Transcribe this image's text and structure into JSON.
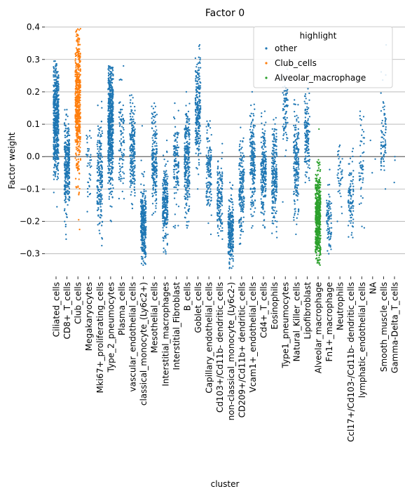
{
  "chart_data": {
    "type": "scatter",
    "style": "strip",
    "title": "Factor 0",
    "xlabel": "cluster",
    "ylabel": "Factor weight",
    "ylim": [
      -0.37,
      0.41
    ],
    "yticks": [
      -0.3,
      -0.2,
      -0.1,
      0.0,
      0.1,
      0.2,
      0.3,
      0.4
    ],
    "ytick_labels": [
      "−0.3",
      "−0.2",
      "−0.1",
      "0.0",
      "0.1",
      "0.2",
      "0.3",
      "0.4"
    ],
    "grid": "horizontal",
    "zero_line": true,
    "categories": [
      "Ciliated_cells",
      "CD8+_T_cells",
      "Club_cells",
      "Megakaryocytes",
      "Mki67+_proliferating_cells",
      "Type_2_pneumocytes",
      "Plasma_cells",
      "vascular_endothelial_cells",
      "classical_monocyte_(Ly6c2+)",
      "Mesothelial_cells",
      "Interstitial_macrophages",
      "Interstitial_Fibroblast",
      "B_cells",
      "Goblet_cells",
      "Capillary_endothelial_cells",
      "Cd103+/Cd11b- dendritic_cells",
      "non-classical_monocyte_(Ly6c2-)",
      "CD209+/Cd11b+ dendritic_cells",
      "Vcam1+_endothelial_cells",
      "Cd4+_T_cells",
      "Eosinophils",
      "Type1_pneumocytes",
      "Natural_Killer_cells",
      "Lipofibroblast",
      "Alveolar_macrophage",
      "Fn1+_macrophage",
      "Neutrophils",
      "Ccl17+/Cd103-/Cd11b- dendritic_cells",
      "lymphatic_endothelial_cells",
      "NA",
      "Smooth_muscle_cells",
      "Gamma-Delta_T_cells"
    ],
    "series": [
      {
        "name": "other",
        "color": "#1f77b4"
      },
      {
        "name": "Club_cells",
        "color": "#ff7f0e"
      },
      {
        "name": "Alveolar_macrophage",
        "color": "#2ca02c"
      }
    ],
    "legend": {
      "title": "highlight",
      "placement": "top-right"
    },
    "distributions": [
      {
        "category": "Ciliated_cells",
        "series": "other",
        "min": -0.155,
        "max": 0.295,
        "center": 0.12,
        "spread": 0.09,
        "n": 520
      },
      {
        "category": "CD8+_T_cells",
        "series": "other",
        "min": -0.255,
        "max": 0.145,
        "center": -0.03,
        "spread": 0.07,
        "n": 300
      },
      {
        "category": "Club_cells",
        "series": "Club_cells",
        "min": -0.225,
        "max": 0.395,
        "center": 0.17,
        "spread": 0.11,
        "n": 520
      },
      {
        "category": "Megakaryocytes",
        "series": "other",
        "min": -0.17,
        "max": 0.08,
        "center": -0.03,
        "spread": 0.06,
        "n": 40
      },
      {
        "category": "Mki67+_proliferating_cells",
        "series": "other",
        "min": -0.275,
        "max": 0.17,
        "center": -0.06,
        "spread": 0.08,
        "n": 200
      },
      {
        "category": "Type_2_pneumocytes",
        "series": "other",
        "min": -0.2,
        "max": 0.28,
        "center": 0.1,
        "spread": 0.1,
        "n": 620
      },
      {
        "category": "Plasma_cells",
        "series": "other",
        "min": -0.13,
        "max": 0.28,
        "center": 0.04,
        "spread": 0.08,
        "n": 90
      },
      {
        "category": "vascular_endothelial_cells",
        "series": "other",
        "min": -0.16,
        "max": 0.19,
        "center": 0.02,
        "spread": 0.07,
        "n": 200
      },
      {
        "category": "classical_monocyte_(Ly6c2+)",
        "series": "other",
        "min": -0.335,
        "max": 0.095,
        "center": -0.21,
        "spread": 0.06,
        "n": 300
      },
      {
        "category": "Mesothelial_cells",
        "series": "other",
        "min": -0.18,
        "max": 0.165,
        "center": -0.01,
        "spread": 0.07,
        "n": 200
      },
      {
        "category": "Interstitial_macrophages",
        "series": "other",
        "min": -0.3,
        "max": 0.05,
        "center": -0.15,
        "spread": 0.06,
        "n": 240
      },
      {
        "category": "Interstitial_Fibroblast",
        "series": "other",
        "min": -0.22,
        "max": 0.165,
        "center": -0.02,
        "spread": 0.07,
        "n": 120
      },
      {
        "category": "B_cells",
        "series": "other",
        "min": -0.22,
        "max": 0.2,
        "center": -0.02,
        "spread": 0.08,
        "n": 260
      },
      {
        "category": "Goblet_cells",
        "series": "other",
        "min": -0.1,
        "max": 0.345,
        "center": 0.15,
        "spread": 0.08,
        "n": 240
      },
      {
        "category": "Capillary_endothelial_cells",
        "series": "other",
        "min": -0.24,
        "max": 0.11,
        "center": -0.03,
        "spread": 0.07,
        "n": 140
      },
      {
        "category": "Cd103+/Cd11b- dendritic_cells",
        "series": "other",
        "min": -0.255,
        "max": 0.04,
        "center": -0.13,
        "spread": 0.06,
        "n": 150
      },
      {
        "category": "non-classical_monocyte_(Ly6c2-)",
        "series": "other",
        "min": -0.345,
        "max": -0.08,
        "center": -0.24,
        "spread": 0.05,
        "n": 260
      },
      {
        "category": "CD209+/Cd11b+ dendritic_cells",
        "series": "other",
        "min": -0.27,
        "max": 0.09,
        "center": -0.1,
        "spread": 0.07,
        "n": 180
      },
      {
        "category": "Vcam1+_endothelial_cells",
        "series": "other",
        "min": -0.22,
        "max": 0.2,
        "center": -0.01,
        "spread": 0.08,
        "n": 200
      },
      {
        "category": "Cd4+_T_cells",
        "series": "other",
        "min": -0.22,
        "max": 0.14,
        "center": -0.05,
        "spread": 0.07,
        "n": 220
      },
      {
        "category": "Eosinophils",
        "series": "other",
        "min": -0.25,
        "max": 0.12,
        "center": -0.06,
        "spread": 0.07,
        "n": 230
      },
      {
        "category": "Type1_pneumocytes",
        "series": "other",
        "min": -0.14,
        "max": 0.27,
        "center": 0.14,
        "spread": 0.06,
        "n": 80
      },
      {
        "category": "Natural_Killer_cells",
        "series": "other",
        "min": -0.24,
        "max": 0.175,
        "center": -0.03,
        "spread": 0.08,
        "n": 180
      },
      {
        "category": "Lipofibroblast",
        "series": "other",
        "min": -0.08,
        "max": 0.25,
        "center": 0.07,
        "spread": 0.07,
        "n": 140
      },
      {
        "category": "Alveolar_macrophage",
        "series": "Alveolar_macrophage",
        "min": -0.335,
        "max": 0.085,
        "center": -0.19,
        "spread": 0.07,
        "n": 520
      },
      {
        "category": "Fn1+_macrophage",
        "series": "other",
        "min": -0.3,
        "max": -0.04,
        "center": -0.2,
        "spread": 0.05,
        "n": 90
      },
      {
        "category": "Neutrophils",
        "series": "other",
        "min": -0.2,
        "max": 0.035,
        "center": -0.05,
        "spread": 0.05,
        "n": 40
      },
      {
        "category": "Ccl17+/Cd103-/Cd11b- dendritic_cells",
        "series": "other",
        "min": -0.25,
        "max": 0.025,
        "center": -0.12,
        "spread": 0.06,
        "n": 90
      },
      {
        "category": "lymphatic_endothelial_cells",
        "series": "other",
        "min": -0.22,
        "max": 0.14,
        "center": -0.02,
        "spread": 0.07,
        "n": 50
      },
      {
        "category": "NA",
        "series": "other",
        "min": -0.05,
        "max": 0.05,
        "center": 0.0,
        "spread": 0.03,
        "n": 3
      },
      {
        "category": "Smooth_muscle_cells",
        "series": "other",
        "min": -0.1,
        "max": 0.345,
        "center": 0.05,
        "spread": 0.09,
        "n": 80
      },
      {
        "category": "Gamma-Delta_T_cells",
        "series": "other",
        "min": -0.08,
        "max": 0.0,
        "center": -0.04,
        "spread": 0.03,
        "n": 3
      }
    ]
  }
}
